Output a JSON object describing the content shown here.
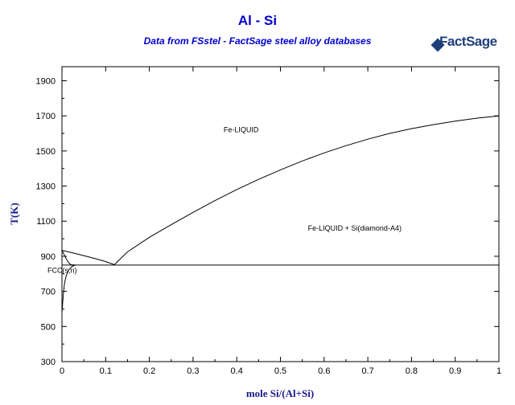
{
  "header": {
    "title": "Al - Si",
    "subtitle": "Data from FSstel - FactSage steel alloy databases"
  },
  "logo": {
    "main": "FactSage",
    "mark": "TM"
  },
  "chart_data": {
    "type": "line",
    "title": "Al - Si",
    "subtitle": "Data from FSstel - FactSage steel alloy databases",
    "xlabel": "mole Si/(Al+Si)",
    "ylabel": "T(K)",
    "xlim": [
      0,
      1
    ],
    "ylim": [
      300,
      1980
    ],
    "xticks": [
      "0",
      "0.1",
      "0.2",
      "0.3",
      "0.4",
      "0.5",
      "0.6",
      "0.7",
      "0.8",
      "0.9",
      "1"
    ],
    "yticks": [
      "300",
      "500",
      "700",
      "900",
      "1100",
      "1300",
      "1500",
      "1700",
      "1900"
    ],
    "grid": false,
    "series": [
      {
        "x": [
          0,
          0.02,
          0.05,
          0.08,
          0.1,
          0.12
        ],
        "y": [
          934,
          922,
          904,
          884,
          870,
          852
        ]
      },
      {
        "x": [
          0.12,
          0.15,
          0.2,
          0.25,
          0.3,
          0.35,
          0.4,
          0.45,
          0.5,
          0.55,
          0.6,
          0.65,
          0.7,
          0.75,
          0.8,
          0.85,
          0.9,
          0.95,
          1.0
        ],
        "y": [
          852,
          925,
          1008,
          1080,
          1150,
          1217,
          1280,
          1338,
          1392,
          1443,
          1489,
          1530,
          1567,
          1600,
          1627,
          1650,
          1670,
          1687,
          1700
        ]
      },
      {
        "x": [
          0,
          1
        ],
        "y": [
          850,
          850
        ]
      },
      {
        "x": [
          0,
          0.005,
          0.01,
          0.015,
          0.02,
          0.03
        ],
        "y": [
          934,
          910,
          885,
          865,
          852,
          850
        ]
      },
      {
        "x": [
          0,
          0.003,
          0.006,
          0.01,
          0.015,
          0.022,
          0.03
        ],
        "y": [
          580,
          680,
          750,
          790,
          820,
          840,
          850
        ]
      }
    ],
    "annotations": [
      {
        "text": "Fe-LIQUID",
        "x": 0.41,
        "y": 1620
      },
      {
        "text": "Fe-LIQUID + Si(diamond-A4)",
        "x": 0.67,
        "y": 1060
      },
      {
        "text": "FCC(s,n)",
        "x": 0.0,
        "y": 820
      }
    ]
  }
}
